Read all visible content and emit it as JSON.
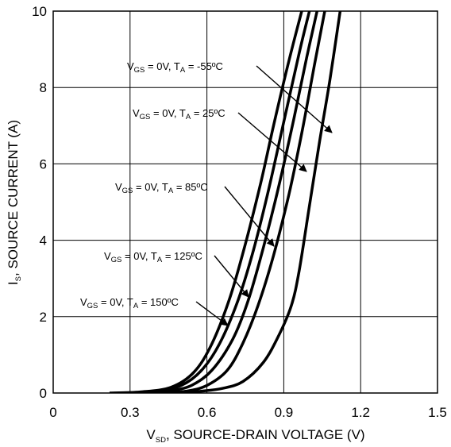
{
  "chart_data": {
    "type": "line",
    "xlabel": {
      "main": "V",
      "sub": "SD",
      "rest": ", SOURCE-DRAIN VOLTAGE (V)"
    },
    "ylabel": {
      "main": "I",
      "sub": "S",
      "rest": ", SOURCE CURRENT (A)"
    },
    "xlim": [
      0,
      1.5
    ],
    "ylim": [
      0,
      10
    ],
    "x_ticks": [
      "0",
      "0.3",
      "0.6",
      "0.9",
      "1.2",
      "1.5"
    ],
    "y_ticks": [
      "0",
      "2",
      "4",
      "6",
      "8",
      "10"
    ],
    "grid": true,
    "series": [
      {
        "name": "V_GS = 0V, T_A = -55°C",
        "label": {
          "pre": "V",
          "sub1": "GS",
          "mid": " = 0V, T",
          "sub2": "A",
          "post": " = -55ºC"
        },
        "x": [
          0.48,
          0.58,
          0.66,
          0.74,
          0.82,
          0.88,
          0.93,
          0.96,
          1.0,
          1.04,
          1.08,
          1.12
        ],
        "y": [
          0.0,
          0.05,
          0.12,
          0.3,
          0.8,
          1.5,
          2.3,
          3.2,
          4.9,
          6.6,
          8.2,
          10.0
        ]
      },
      {
        "name": "V_GS = 0V, T_A = 25°C",
        "label": {
          "pre": "V",
          "sub1": "GS",
          "mid": " = 0V, T",
          "sub2": "A",
          "post": " = 25ºC"
        },
        "x": [
          0.42,
          0.52,
          0.6,
          0.68,
          0.74,
          0.8,
          0.86,
          0.92,
          0.97,
          1.02,
          1.06
        ],
        "y": [
          0.0,
          0.05,
          0.2,
          0.6,
          1.3,
          2.3,
          3.6,
          5.2,
          6.8,
          8.6,
          10.0
        ]
      },
      {
        "name": "V_GS = 0V, T_A = 85°C",
        "label": {
          "pre": "V",
          "sub1": "GS",
          "mid": " = 0V, T",
          "sub2": "A",
          "post": " = 85ºC"
        },
        "x": [
          0.35,
          0.45,
          0.54,
          0.62,
          0.7,
          0.76,
          0.82,
          0.88,
          0.94,
          0.99,
          1.03
        ],
        "y": [
          0.0,
          0.05,
          0.2,
          0.6,
          1.4,
          2.4,
          3.8,
          5.4,
          7.2,
          8.8,
          10.0
        ]
      },
      {
        "name": "V_GS = 0V, T_A = 125°C",
        "label": {
          "pre": "V",
          "sub1": "GS",
          "mid": " = 0V, T",
          "sub2": "A",
          "post": " = 125ºC"
        },
        "x": [
          0.3,
          0.4,
          0.5,
          0.58,
          0.65,
          0.72,
          0.78,
          0.84,
          0.9,
          0.96,
          1.0
        ],
        "y": [
          0.0,
          0.05,
          0.2,
          0.6,
          1.3,
          2.4,
          3.7,
          5.3,
          7.1,
          8.9,
          10.0
        ]
      },
      {
        "name": "V_GS = 0V, T_A = 150°C",
        "label": {
          "pre": "V",
          "sub1": "GS",
          "mid": " = 0V, T",
          "sub2": "A",
          "post": " = 150ºC"
        },
        "x": [
          0.22,
          0.34,
          0.46,
          0.55,
          0.62,
          0.69,
          0.75,
          0.81,
          0.86,
          0.92,
          0.97
        ],
        "y": [
          0.0,
          0.03,
          0.15,
          0.55,
          1.3,
          2.5,
          3.9,
          5.5,
          7.0,
          8.7,
          10.0
        ]
      }
    ]
  }
}
